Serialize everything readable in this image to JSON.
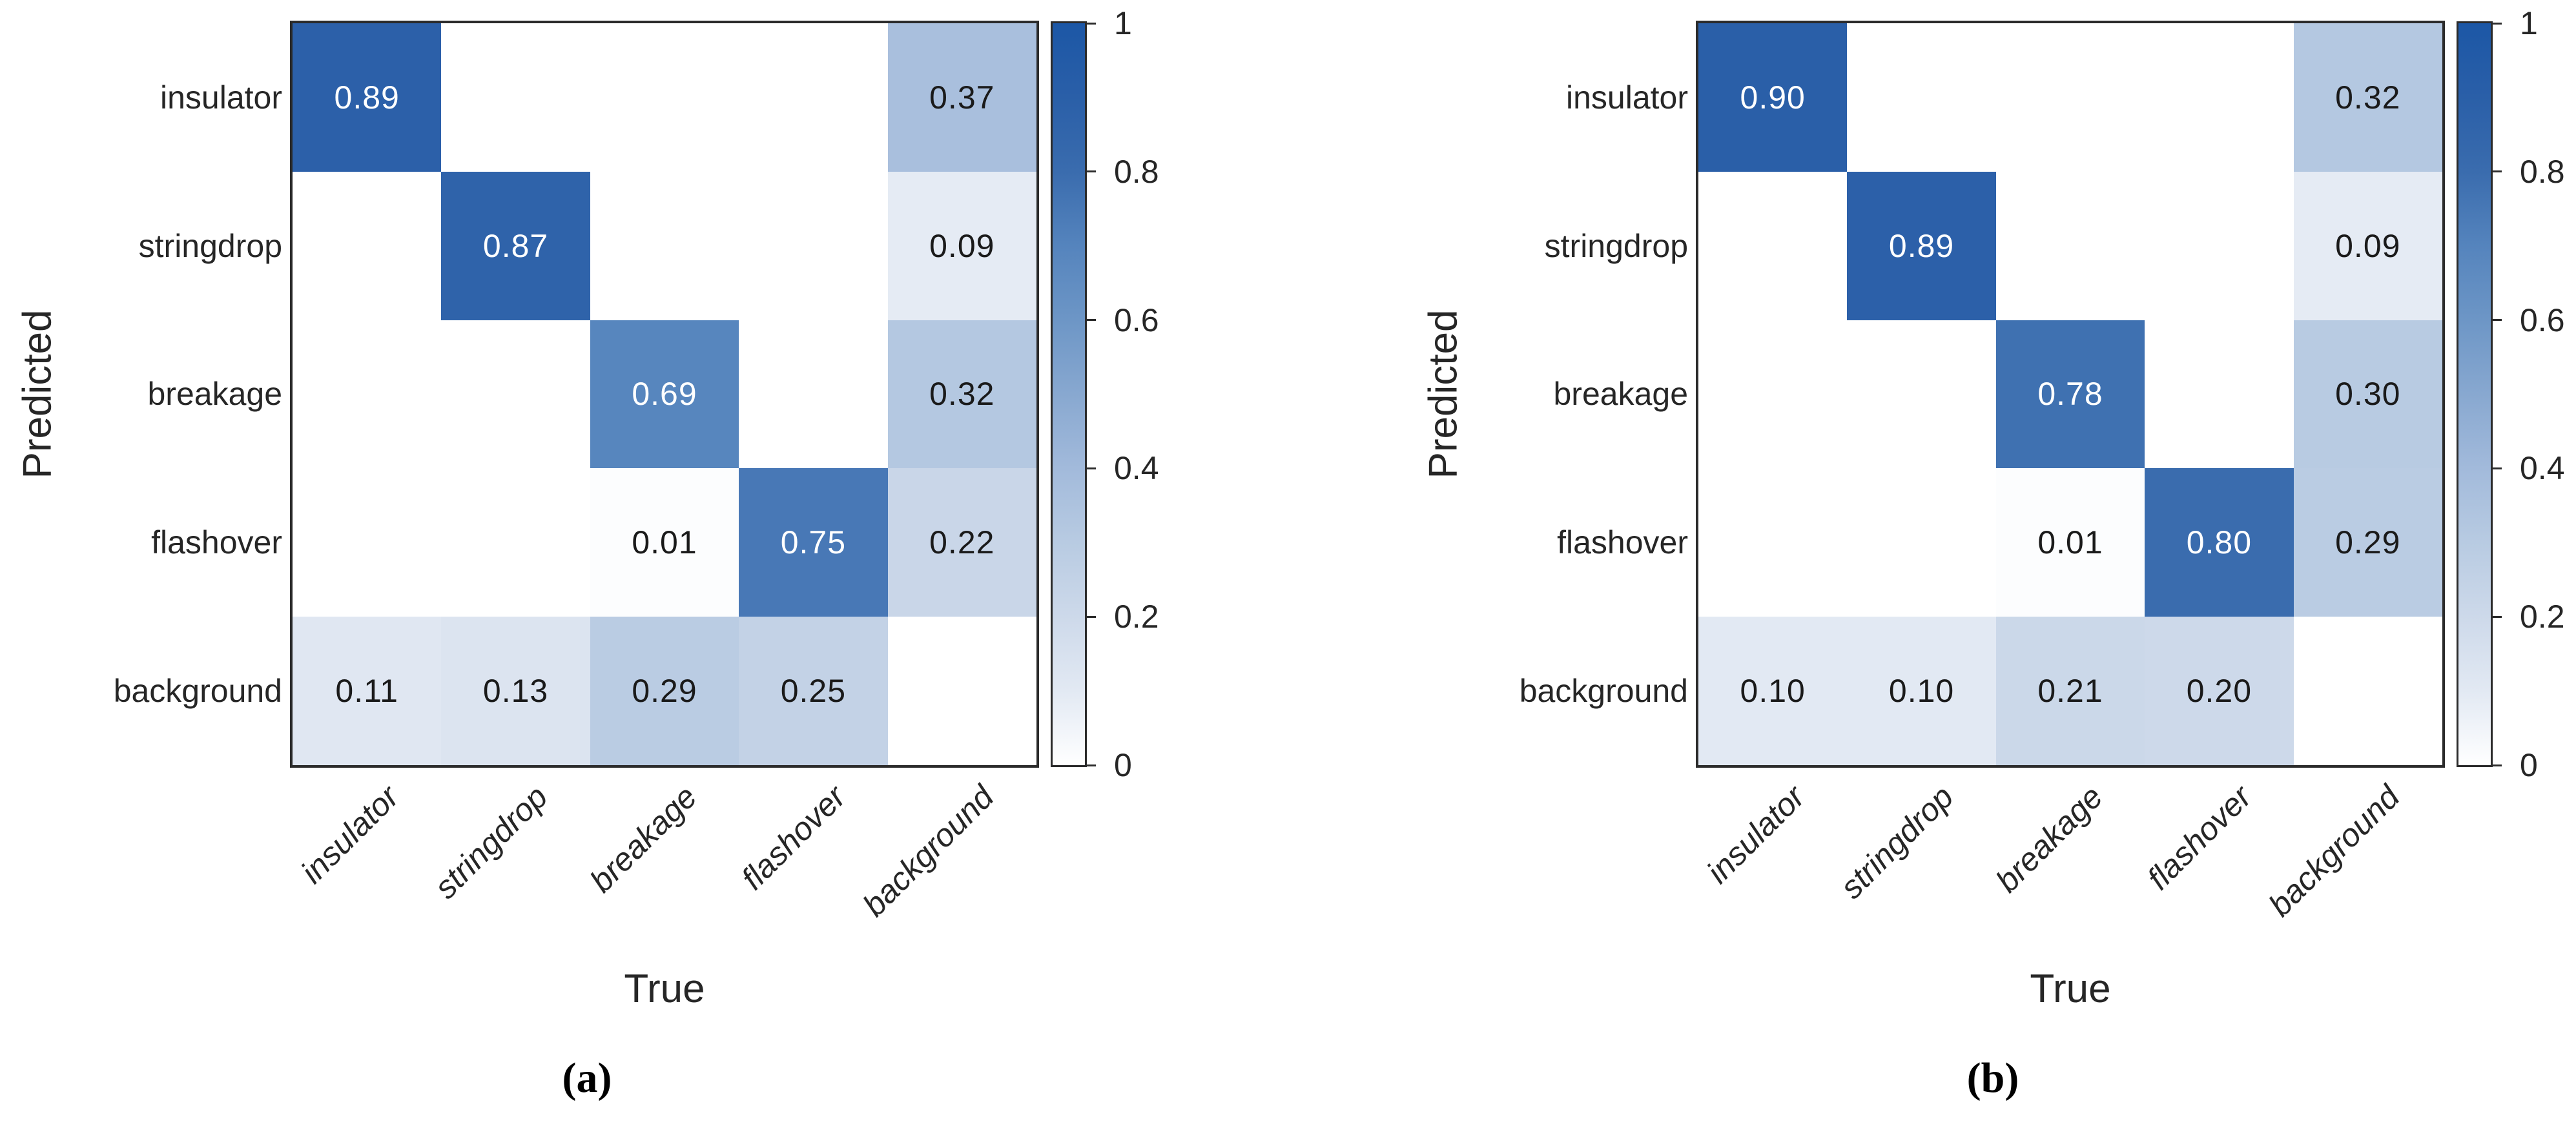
{
  "figure": {
    "description": "Two normalized confusion matrices shown side by side with Blues colorbars",
    "colors": {
      "background": "#ffffff",
      "axis_line": "#2b2b2b",
      "label_text": "#262626",
      "cell_text_on_dark": "#ffffff",
      "cell_text_on_light": "#1a1a1a",
      "colormap_blues": [
        [
          0.0,
          "#ffffff"
        ],
        [
          0.1,
          "#e2e9f3"
        ],
        [
          0.2,
          "#cdd9ea"
        ],
        [
          0.3,
          "#b8cbe2"
        ],
        [
          0.4,
          "#a2badb"
        ],
        [
          0.5,
          "#88a8d0"
        ],
        [
          0.6,
          "#6d96c6"
        ],
        [
          0.7,
          "#5584bd"
        ],
        [
          0.8,
          "#3a6cae"
        ],
        [
          0.9,
          "#2a5fa8"
        ],
        [
          1.0,
          "#1c57a6"
        ]
      ]
    }
  },
  "chart_data": [
    {
      "id": "a",
      "type": "heatmap",
      "caption": "(a)",
      "xlabel": "True",
      "ylabel": "Predicted",
      "x_categories": [
        "insulator",
        "stringdrop",
        "breakage",
        "flashover",
        "background"
      ],
      "y_categories": [
        "insulator",
        "stringdrop",
        "breakage",
        "flashover",
        "background"
      ],
      "values": [
        [
          0.89,
          0,
          0,
          0,
          0.37
        ],
        [
          0,
          0.87,
          0,
          0,
          0.09
        ],
        [
          0,
          0,
          0.69,
          0,
          0.32
        ],
        [
          0,
          0,
          0.01,
          0.75,
          0.22
        ],
        [
          0.11,
          0.13,
          0.29,
          0.25,
          0
        ]
      ],
      "value_display_rule": "two decimals, blank when zero",
      "colorbar": {
        "min": 0,
        "max": 1,
        "ticks": [
          0,
          0.2,
          0.4,
          0.6,
          0.8,
          1
        ],
        "tick_labels": [
          "0",
          "0.2",
          "0.4",
          "0.6",
          "0.8",
          "1"
        ],
        "position": "right"
      },
      "grid": false
    },
    {
      "id": "b",
      "type": "heatmap",
      "caption": "(b)",
      "xlabel": "True",
      "ylabel": "Predicted",
      "x_categories": [
        "insulator",
        "stringdrop",
        "breakage",
        "flashover",
        "background"
      ],
      "y_categories": [
        "insulator",
        "stringdrop",
        "breakage",
        "flashover",
        "background"
      ],
      "values": [
        [
          0.9,
          0,
          0,
          0,
          0.32
        ],
        [
          0,
          0.89,
          0,
          0,
          0.09
        ],
        [
          0,
          0,
          0.78,
          0,
          0.3
        ],
        [
          0,
          0,
          0.01,
          0.8,
          0.29
        ],
        [
          0.1,
          0.1,
          0.21,
          0.2,
          0
        ]
      ],
      "value_display_rule": "two decimals, blank when zero",
      "colorbar": {
        "min": 0,
        "max": 1,
        "ticks": [
          0,
          0.2,
          0.4,
          0.6,
          0.8,
          1
        ],
        "tick_labels": [
          "0",
          "0.2",
          "0.4",
          "0.6",
          "0.8",
          "1"
        ],
        "position": "right"
      },
      "grid": false
    }
  ]
}
